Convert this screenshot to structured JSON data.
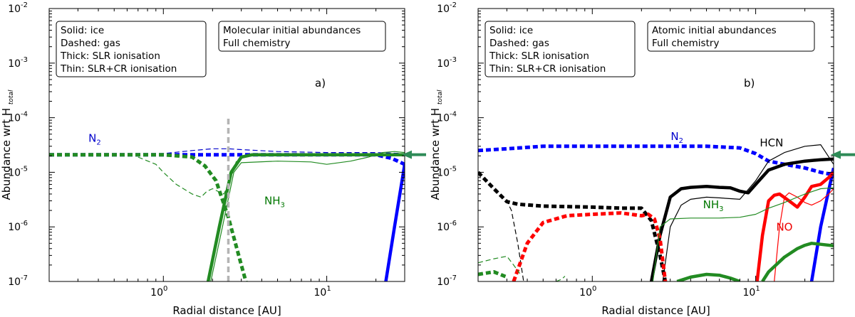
{
  "chart_data": [
    {
      "type": "line",
      "panel_label": "a)",
      "xlabel": "Radial distance [AU]",
      "ylabel_main": "Abundance wrt H",
      "ylabel_sub": "total",
      "xscale": "log",
      "yscale": "log",
      "xlim": [
        0.2,
        30
      ],
      "ylim": [
        1e-07,
        0.01
      ],
      "x_ticks": [
        {
          "value": 1,
          "base": "10",
          "exp": "0"
        },
        {
          "value": 10,
          "base": "10",
          "exp": "1"
        }
      ],
      "y_ticks": [
        {
          "value": 1e-07,
          "base": "10",
          "exp": "-7"
        },
        {
          "value": 1e-06,
          "base": "10",
          "exp": "-6"
        },
        {
          "value": 1e-05,
          "base": "10",
          "exp": "-5"
        },
        {
          "value": 0.0001,
          "base": "10",
          "exp": "-4"
        },
        {
          "value": 0.001,
          "base": "10",
          "exp": "-3"
        },
        {
          "value": 0.01,
          "base": "10",
          "exp": "-2"
        }
      ],
      "legend_lines": [
        "Solid: ice",
        "Dashed: gas",
        "Thick: SLR ionisation",
        "Thin: SLR+CR ionisation"
      ],
      "info_lines": [
        "Molecular initial abundances",
        "Full chemistry"
      ],
      "labels": [
        {
          "name": "n2",
          "text": "N",
          "sub": "2",
          "color": "#0000cc",
          "at": [
            0.38,
            3.6e-05
          ]
        },
        {
          "name": "nh3",
          "text": "NH",
          "sub": "3",
          "color": "#007700",
          "at": [
            4.8,
            2.6e-06
          ]
        }
      ],
      "series": [
        {
          "name": "N2 gas (SLR)",
          "color": "#0000ff",
          "style": "dotted-thick",
          "x": [
            0.2,
            0.5,
            1,
            2,
            5,
            10,
            20,
            25,
            30
          ],
          "y": [
            2.1e-05,
            2.1e-05,
            2.1e-05,
            2.1e-05,
            2.1e-05,
            2.1e-05,
            2.1e-05,
            1.8e-05,
            1.4e-05
          ]
        },
        {
          "name": "N2 gas (SLR+CR)",
          "color": "#0000cc",
          "style": "dashed-thin",
          "x": [
            0.2,
            0.5,
            1,
            1.5,
            2,
            2.5,
            3,
            5,
            10,
            20,
            30
          ],
          "y": [
            2.1e-05,
            2.1e-05,
            2.2e-05,
            2.5e-05,
            2.7e-05,
            2.7e-05,
            2.6e-05,
            2.4e-05,
            2.3e-05,
            2.3e-05,
            2.2e-05
          ]
        },
        {
          "name": "N2 ice (SLR)",
          "color": "#0000ff",
          "style": "solid-thick",
          "x": [
            23,
            26,
            30
          ],
          "y": [
            1e-07,
            1e-06,
            1.4e-05
          ]
        },
        {
          "name": "NH3 ice (SLR)",
          "color": "#228b22",
          "style": "solid-thick",
          "x": [
            1.88,
            2.2,
            2.6,
            3.0,
            3.5,
            5,
            10,
            30
          ],
          "y": [
            1e-07,
            1e-06,
            1e-05,
            1.9e-05,
            2.1e-05,
            2.1e-05,
            2.1e-05,
            2.1e-05
          ]
        },
        {
          "name": "NH3 ice (SLR+CR)",
          "color": "#228b22",
          "style": "solid-thin",
          "x": [
            1.95,
            2.3,
            2.7,
            3.0,
            5,
            8,
            10,
            14,
            18,
            22,
            26,
            30
          ],
          "y": [
            1e-07,
            1e-06,
            1e-05,
            1.5e-05,
            1.6e-05,
            1.55e-05,
            1.4e-05,
            1.6e-05,
            1.9e-05,
            2.3e-05,
            2.4e-05,
            2.3e-05
          ]
        },
        {
          "name": "NH3 gas (SLR)",
          "color": "#228b22",
          "style": "dotted-thick",
          "x": [
            0.2,
            0.5,
            1,
            1.5,
            1.8,
            2.1,
            2.5,
            3.0,
            3.2
          ],
          "y": [
            2.1e-05,
            2.1e-05,
            2.1e-05,
            1.9e-05,
            1.3e-05,
            7e-06,
            1.5e-06,
            2e-07,
            1e-07
          ]
        },
        {
          "name": "NH3 gas (SLR+CR)",
          "color": "#228b22",
          "style": "dashed-thin",
          "x": [
            0.7,
            0.9,
            1.0,
            1.2,
            1.5,
            1.7,
            1.85,
            2.0,
            2.15,
            2.35,
            2.6,
            2.8
          ],
          "y": [
            1.9e-05,
            1.4e-05,
            1e-05,
            6e-06,
            4e-06,
            3.5e-06,
            4.5e-06,
            5e-06,
            4.5e-06,
            4e-06,
            8e-06,
            1.6e-05
          ]
        },
        {
          "name": "Grey vertical marker",
          "color": "#b4b4b4",
          "style": "dashed-grey",
          "x": [
            2.5,
            2.5
          ],
          "y": [
            1e-07,
            0.00011
          ]
        }
      ]
    },
    {
      "type": "line",
      "panel_label": "b)",
      "xlabel": "Radial distance [AU]",
      "ylabel_main": "Abundance wrt H",
      "ylabel_sub": "total",
      "xscale": "log",
      "yscale": "log",
      "xlim": [
        0.2,
        30
      ],
      "ylim": [
        1e-07,
        0.01
      ],
      "x_ticks": [
        {
          "value": 1,
          "base": "10",
          "exp": "0"
        },
        {
          "value": 10,
          "base": "10",
          "exp": "1"
        }
      ],
      "y_ticks": [
        {
          "value": 1e-07,
          "base": "10",
          "exp": "-7"
        },
        {
          "value": 1e-06,
          "base": "10",
          "exp": "-6"
        },
        {
          "value": 1e-05,
          "base": "10",
          "exp": "-5"
        },
        {
          "value": 0.0001,
          "base": "10",
          "exp": "-4"
        },
        {
          "value": 0.001,
          "base": "10",
          "exp": "-3"
        },
        {
          "value": 0.01,
          "base": "10",
          "exp": "-2"
        }
      ],
      "legend_lines": [
        "Solid: ice",
        "Dashed: gas",
        "Thick: SLR ionisation",
        "Thin: SLR+CR ionisation"
      ],
      "info_lines": [
        "Atomic initial abundances",
        "Full chemistry"
      ],
      "labels": [
        {
          "name": "n2",
          "text": "N",
          "sub": "2",
          "color": "#0000cc",
          "at": [
            3.3,
            3.9e-05
          ]
        },
        {
          "name": "hcn",
          "text": "HCN",
          "sub": "",
          "color": "#000000",
          "at": [
            12.5,
            3e-05
          ]
        },
        {
          "name": "nh3",
          "text": "NH",
          "sub": "3",
          "color": "#007700",
          "at": [
            5.5,
            2.2e-06
          ]
        },
        {
          "name": "no",
          "text": "NO",
          "sub": "",
          "color": "#ee0000",
          "at": [
            15,
            8.5e-07
          ]
        }
      ],
      "series": [
        {
          "name": "N2 gas (SLR)",
          "color": "#0000ff",
          "style": "dotted-thick",
          "x": [
            0.2,
            0.3,
            0.5,
            1,
            2,
            5,
            8,
            10,
            12,
            15,
            20,
            25,
            30
          ],
          "y": [
            2.5e-05,
            2.7e-05,
            3e-05,
            3e-05,
            3e-05,
            3e-05,
            2.8e-05,
            2.2e-05,
            1.6e-05,
            1.4e-05,
            1.2e-05,
            1e-05,
            9e-06
          ]
        },
        {
          "name": "N2 ice (SLR)",
          "color": "#0000ff",
          "style": "solid-thick",
          "x": [
            22,
            25,
            30
          ],
          "y": [
            1e-07,
            1e-06,
            1.2e-05
          ]
        },
        {
          "name": "HCN ice (SLR)",
          "color": "#000000",
          "style": "solid-thick",
          "x": [
            2.3,
            2.6,
            3.0,
            3.5,
            4,
            5,
            6,
            7,
            8,
            9,
            10,
            12,
            15,
            20,
            25,
            30
          ],
          "y": [
            1e-07,
            7e-07,
            3.5e-06,
            5e-06,
            5.3e-06,
            5.5e-06,
            5.3e-06,
            5.2e-06,
            4.5e-06,
            4.2e-06,
            6e-06,
            1.1e-05,
            1.4e-05,
            1.6e-05,
            1.7e-05,
            1.75e-05
          ]
        },
        {
          "name": "HCN ice (SLR+CR)",
          "color": "#000000",
          "style": "solid-thin",
          "x": [
            2.7,
            3.0,
            3.5,
            4,
            5,
            6,
            8,
            10,
            12,
            15,
            20,
            25,
            30
          ],
          "y": [
            1e-07,
            1e-06,
            2.5e-06,
            3.2e-06,
            3.5e-06,
            3.4e-06,
            3.2e-06,
            7e-06,
            1.6e-05,
            2.3e-05,
            3e-05,
            3.2e-05,
            1.4e-05
          ]
        },
        {
          "name": "HCN gas (SLR)",
          "color": "#000000",
          "style": "dotted-thick",
          "x": [
            0.2,
            0.25,
            0.3,
            0.35,
            0.5,
            1,
            1.5,
            2,
            2.3,
            2.6,
            2.8
          ],
          "y": [
            1e-05,
            5e-06,
            2.9e-06,
            2.6e-06,
            2.4e-06,
            2.3e-06,
            2.2e-06,
            2.2e-06,
            1.3e-06,
            3e-07,
            1e-07
          ]
        },
        {
          "name": "HCN gas (SLR+CR)",
          "color": "#000000",
          "style": "dashed-thin",
          "x": [
            0.2,
            0.25,
            0.3,
            0.32,
            0.35,
            0.38
          ],
          "y": [
            1e-05,
            5e-06,
            3e-06,
            2e-06,
            5e-07,
            1e-07
          ]
        },
        {
          "name": "NO gas (SLR)",
          "color": "#ff0000",
          "style": "dotted-thick",
          "x": [
            0.33,
            0.4,
            0.5,
            0.7,
            1,
            1.5,
            2,
            2.2,
            2.4,
            2.6,
            2.8
          ],
          "y": [
            1e-07,
            5e-07,
            1.2e-06,
            1.6e-06,
            1.7e-06,
            1.8e-06,
            1.6e-06,
            1.7e-06,
            1.4e-06,
            6e-07,
            1e-07
          ]
        },
        {
          "name": "NO ice (SLR)",
          "color": "#ff0000",
          "style": "solid-thick",
          "x": [
            10.2,
            11,
            12,
            13,
            14,
            16,
            18,
            20,
            22,
            25,
            28,
            30
          ],
          "y": [
            1e-07,
            7e-07,
            3e-06,
            3.8e-06,
            4e-06,
            3e-06,
            2.3e-06,
            3.5e-06,
            5.5e-06,
            6e-06,
            8e-06,
            1e-05
          ]
        },
        {
          "name": "NO ice (SLR+CR)",
          "color": "#ff0000",
          "style": "solid-thin",
          "x": [
            13,
            14,
            15,
            16,
            18,
            20,
            22,
            25,
            28,
            30
          ],
          "y": [
            1e-07,
            1e-06,
            3.5e-06,
            4.2e-06,
            3.5e-06,
            2.8e-06,
            2.5e-06,
            3e-06,
            4e-06,
            5e-06
          ]
        },
        {
          "name": "NH3 ice (SLR)",
          "color": "#228b22",
          "style": "solid-thick",
          "x": [
            3.3,
            4,
            5,
            6,
            7,
            8,
            9,
            10,
            11,
            12,
            15,
            18,
            20,
            22,
            25,
            30
          ],
          "y": [
            1e-07,
            1.2e-07,
            1.35e-07,
            1.3e-07,
            1.15e-07,
            1e-07,
            null,
            null,
            1e-07,
            1.5e-07,
            2.8e-07,
            4e-07,
            4.6e-07,
            5e-07,
            4.8e-07,
            4.5e-07
          ]
        },
        {
          "name": "NH3 ice (SLR+CR)",
          "color": "#228b22",
          "style": "solid-thin",
          "x": [
            2.35,
            2.6,
            3,
            4,
            6,
            8,
            10,
            12,
            15,
            20,
            25,
            30
          ],
          "y": [
            1e-07,
            1e-06,
            1.4e-06,
            1.45e-06,
            1.45e-06,
            1.5e-06,
            1.7e-06,
            2.2e-06,
            2.8e-06,
            4e-06,
            5e-06,
            5.2e-06
          ]
        },
        {
          "name": "NH3 gas (SLR)",
          "color": "#228b22",
          "style": "dotted-thick",
          "x": [
            0.2,
            0.25,
            0.3
          ],
          "y": [
            1.35e-07,
            1.5e-07,
            1.2e-07
          ]
        },
        {
          "name": "NH3 gas (SLR+CR)",
          "color": "#228b22",
          "style": "dashed-thin",
          "x": [
            0.2,
            0.25,
            0.3,
            0.33,
            0.36
          ],
          "y": [
            2.2e-07,
            2.6e-07,
            2.9e-07,
            2e-07,
            1.4e-07
          ]
        },
        {
          "name": "NH3 gas small feature",
          "color": "#228b22",
          "style": "dashed-thin",
          "x": [
            0.6,
            0.65,
            0.68
          ],
          "y": [
            1e-07,
            1.1e-07,
            1.25e-07
          ]
        }
      ]
    }
  ]
}
